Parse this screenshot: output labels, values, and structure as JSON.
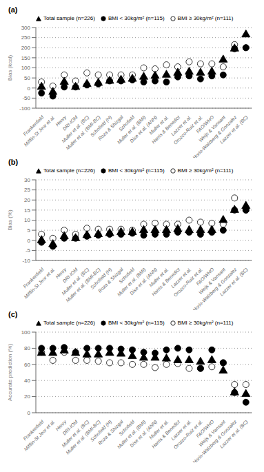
{
  "chart_data": [
    {
      "type": "scatter",
      "title": "(a)",
      "y_label": "Bias (kcal)",
      "categories": [
        "Frankenfield",
        "Mifflin-St Jeor et al.",
        "Henry",
        "DRI-IOM",
        "Muller et al. (BC)",
        "Muller et al. (BMI-BC)",
        "Schofield (H)",
        "Roza & Shizgal",
        "Schofield",
        "Muller et al. (BMI)",
        "Dise et al. (ANN)",
        "Muller et al.",
        "Harris & Benedict",
        "Lazzer et al.",
        "Orozco-Ruiz et al.",
        "FAO/WHO",
        "Weijs & Vansant",
        "Horio-Walzberg & Gonzalez",
        "Lazzer et al. (BC)"
      ],
      "series": [
        {
          "name": "Total sample (n=226)",
          "color": "black",
          "marker": "triangle",
          "values": [
            5,
            -20,
            30,
            5,
            20,
            25,
            35,
            40,
            45,
            55,
            60,
            65,
            75,
            80,
            75,
            80,
            140,
            195,
            265
          ]
        },
        {
          "name": "BMI < 30kg/m² (n=115)",
          "color": "black",
          "marker": "circle",
          "values": [
            -25,
            -40,
            5,
            5,
            15,
            20,
            35,
            35,
            40,
            30,
            35,
            30,
            55,
            60,
            45,
            60,
            65,
            195,
            200
          ]
        },
        {
          "name": "BMI ≥ 30kg/m² (n=111)",
          "color": "black",
          "marker": "open_circle",
          "values": [
            30,
            10,
            65,
            35,
            75,
            65,
            65,
            65,
            65,
            100,
            95,
            115,
            105,
            130,
            120,
            120,
            105,
            215,
            200
          ]
        }
      ],
      "ylim": [
        -100,
        300
      ],
      "yticks": [
        -100,
        -50,
        0,
        50,
        100,
        150,
        200,
        250,
        300
      ],
      "grid": true,
      "legend": "upper left"
    },
    {
      "type": "scatter",
      "title": "(b)",
      "y_label": "Bias (%)",
      "categories": [
        "Frankenfield",
        "Mifflin-St Jeor et al.",
        "Henry",
        "DRI-IOM",
        "Muller et al. (BC)",
        "Muller et al. (BMI-BC)",
        "Schofield (H)",
        "Roza & Shizgal",
        "Schofield",
        "Muller et al. (BMI)",
        "Dise et al. (ANN)",
        "Muller et al.",
        "Harris & Benedict",
        "Lazzer et al.",
        "Orozco-Ruiz et al.",
        "FAO/WHO",
        "Weijs & Vansant",
        "Horio-Walzberg & Gonzalez",
        "Lazzer et al. (BC)"
      ],
      "series": [
        {
          "name": "Total sample (n=226)",
          "color": "black",
          "marker": "triangle",
          "values": [
            0,
            -2,
            2,
            1,
            2.5,
            3,
            3.5,
            4,
            4,
            5,
            5,
            5,
            5.5,
            5,
            5,
            5,
            10,
            15,
            17
          ]
        },
        {
          "name": "BMI < 30kg/m² (n=115)",
          "color": "black",
          "marker": "circle",
          "values": [
            -1,
            -3,
            1,
            1,
            2,
            2.5,
            3,
            3,
            3.5,
            2.5,
            3,
            3,
            4,
            4,
            3,
            4,
            5,
            15,
            15
          ]
        },
        {
          "name": "BMI ≥ 30kg/m² (n=111)",
          "color": "black",
          "marker": "open_circle",
          "values": [
            3,
            1,
            5,
            3,
            6,
            5.5,
            5.5,
            5.5,
            5,
            8,
            8.5,
            8,
            8,
            10,
            9,
            8.5,
            8,
            21,
            15
          ]
        }
      ],
      "ylim": [
        -10,
        30
      ],
      "yticks": [
        -10,
        -5,
        0,
        5,
        10,
        15,
        20,
        25,
        30
      ],
      "grid": true,
      "legend": "upper left"
    },
    {
      "type": "scatter",
      "title": "(c)",
      "y_label": "Accurate prediction (%)",
      "categories": [
        "Frankenfield",
        "Mifflin-St Jeor et al.",
        "Henry",
        "DRI-IOM",
        "Muller et al. (BC)",
        "Muller et al. (BMI-BC)",
        "Schofield (H)",
        "Roza & Shizgal",
        "Schofield",
        "Muller et al. (BMI)",
        "Dise et al. (ANN)",
        "Muller et al.",
        "Harris & Benedict",
        "Lazzer et al.",
        "Orozco-Ruiz et al.",
        "FAO/WHO",
        "Weijs & Vansant",
        "Horio-Walzberg & Gonzalez",
        "Lazzer et al. (BC)"
      ],
      "series": [
        {
          "name": "Total sample (n=226)",
          "color": "black",
          "marker": "triangle",
          "values": [
            74,
            74,
            77,
            74,
            72,
            72,
            74,
            73,
            70,
            68,
            68,
            67,
            65,
            65,
            63,
            65,
            52,
            25,
            23
          ]
        },
        {
          "name": "BMI < 30kg/m² (n=115)",
          "color": "black",
          "marker": "circle",
          "values": [
            80,
            80,
            81,
            75,
            80,
            80,
            80,
            79,
            78,
            75,
            74,
            78,
            80,
            78,
            55,
            78,
            62,
            25,
            13
          ]
        },
        {
          "name": "BMI ≥ 30kg/m² (n=111)",
          "color": "black",
          "marker": "open_circle",
          "values": [
            75,
            65,
            75,
            65,
            65,
            64,
            62,
            62,
            60,
            60,
            56,
            60,
            61,
            55,
            55,
            57,
            62,
            35,
            35
          ]
        }
      ],
      "ylim": [
        0,
        100
      ],
      "yticks": [
        0,
        20,
        40,
        60,
        80,
        100
      ],
      "grid": true,
      "legend": "upper left"
    }
  ]
}
